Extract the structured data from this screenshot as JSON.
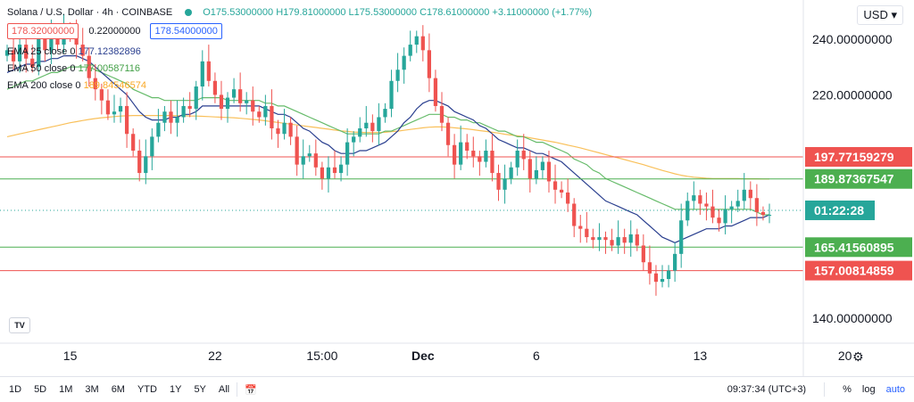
{
  "header": {
    "title": "Solana / U.S. Dollar · 4h · COINBASE",
    "ohlc": "O175.53000000 H179.81000000 L175.53000000 C178.61000000 +3.11000000 (+1.77%)",
    "bid": "178.32000000",
    "spread": "0.22000000",
    "ask": "178.54000000",
    "currency": "USD",
    "ema25": "EMA 25 close 0",
    "ema25_value": "177.12382896",
    "ema50": "EMA 50 close 0",
    "ema50_value": "177.00587116",
    "ema200": "EMA 200 close 0",
    "ema200_value": "189.84546574"
  },
  "chart_data": {
    "type": "candlestick",
    "ylim": [
      131,
      254
    ],
    "y_ticks": [
      {
        "v": 240,
        "label": "240.00000000"
      },
      {
        "v": 220,
        "label": "220.00000000"
      },
      {
        "v": 140,
        "label": "140.00000000"
      }
    ],
    "x_ticks": [
      "15",
      "22",
      "15:00",
      "Dec",
      "6",
      "13",
      "20"
    ],
    "x_tick_index": [
      10,
      33,
      50,
      66,
      84,
      110,
      133
    ],
    "horizontal_lines": [
      {
        "value": 197.77159279,
        "label": "197.77159279",
        "color": "#ef5350"
      },
      {
        "value": 189.87367547,
        "label": "189.87367547",
        "color": "#4caf50"
      },
      {
        "value": 165.41560895,
        "label": "165.41560895",
        "color": "#4caf50"
      },
      {
        "value": 157.00814859,
        "label": "157.00814859",
        "color": "#ef5350"
      }
    ],
    "current_price": {
      "value": 178.61,
      "countdown": "01:22:28",
      "color": "#26a69a"
    },
    "closes": [
      236,
      232,
      238,
      233,
      230,
      240,
      236,
      241,
      238,
      244,
      243,
      238,
      234,
      226,
      222,
      218,
      213,
      214,
      216,
      206,
      200,
      192,
      198,
      205,
      210,
      214,
      210,
      212,
      216,
      215,
      223,
      232,
      225,
      220,
      215,
      219,
      222,
      217,
      218,
      214,
      212,
      216,
      208,
      206,
      210,
      205,
      195,
      198,
      199,
      194,
      190,
      194,
      192,
      195,
      203,
      205,
      208,
      210,
      207,
      212,
      215,
      225,
      229,
      234,
      238,
      241,
      236,
      226,
      216,
      210,
      202,
      195,
      203,
      200,
      198,
      196,
      200,
      192,
      186,
      190,
      194,
      200,
      197,
      190,
      193,
      196,
      189,
      186,
      185,
      181,
      173,
      172,
      169,
      168,
      169,
      168,
      166,
      169,
      167,
      170,
      166,
      160,
      156,
      153,
      154,
      157,
      163,
      175,
      182,
      184,
      181,
      180,
      176,
      174,
      179,
      180,
      182,
      186,
      183,
      178,
      177,
      177
    ],
    "ema25": [
      228,
      229,
      230,
      231,
      231,
      232,
      232,
      233,
      233,
      234,
      234,
      234,
      233,
      232,
      230,
      228,
      226,
      224,
      222,
      220,
      217,
      214,
      212,
      211,
      211,
      211,
      212,
      212,
      213,
      213,
      214,
      216,
      216,
      216,
      216,
      216,
      216,
      216,
      216,
      216,
      216,
      215,
      214,
      213,
      213,
      212,
      210,
      208,
      207,
      205,
      203,
      202,
      200,
      199,
      199,
      199,
      200,
      200,
      201,
      202,
      203,
      205,
      207,
      210,
      212,
      215,
      217,
      218,
      218,
      217,
      216,
      214,
      213,
      212,
      211,
      209,
      208,
      206,
      204,
      203,
      202,
      201,
      201,
      200,
      199,
      199,
      198,
      197,
      196,
      194,
      192,
      190,
      188,
      186,
      184,
      182,
      181,
      180,
      179,
      178,
      177,
      175,
      173,
      171,
      169,
      168,
      167,
      168,
      169,
      170,
      171,
      172,
      172,
      172,
      173,
      173,
      174,
      175,
      176,
      176,
      176,
      177
    ],
    "ema50": [
      222,
      223,
      224,
      225,
      225,
      226,
      227,
      228,
      228,
      229,
      230,
      230,
      230,
      230,
      229,
      228,
      227,
      226,
      225,
      224,
      222,
      221,
      220,
      219,
      219,
      218,
      218,
      218,
      218,
      218,
      218,
      219,
      219,
      219,
      219,
      218,
      218,
      218,
      218,
      218,
      218,
      217,
      217,
      216,
      216,
      215,
      214,
      213,
      212,
      211,
      210,
      209,
      208,
      207,
      206,
      206,
      206,
      206,
      206,
      206,
      207,
      207,
      208,
      209,
      210,
      211,
      212,
      213,
      213,
      213,
      212,
      212,
      211,
      211,
      210,
      210,
      209,
      208,
      207,
      207,
      206,
      205,
      205,
      204,
      203,
      203,
      202,
      201,
      200,
      199,
      197,
      196,
      195,
      193,
      192,
      190,
      189,
      188,
      187,
      186,
      185,
      184,
      183,
      182,
      181,
      180,
      179,
      179,
      179,
      179,
      179,
      179,
      179,
      179,
      179,
      179,
      179,
      179,
      179,
      178,
      177,
      177
    ],
    "ema200": [
      205,
      205.5,
      206,
      206.5,
      207,
      207.5,
      208,
      208.5,
      209,
      209.5,
      210,
      210.4,
      210.8,
      211.2,
      211.5,
      211.8,
      212,
      212.2,
      212.4,
      212.5,
      212.6,
      212.6,
      212.6,
      212.6,
      212.6,
      212.6,
      212.6,
      212.5,
      212.5,
      212.4,
      212.4,
      212.3,
      212.2,
      212.1,
      212,
      211.9,
      211.8,
      211.6,
      211.4,
      211.2,
      211,
      210.7,
      210.4,
      210.1,
      209.8,
      209.5,
      209.2,
      208.9,
      208.6,
      208.3,
      208,
      207.7,
      207.4,
      207.1,
      206.9,
      206.7,
      206.6,
      206.5,
      206.5,
      206.5,
      206.6,
      206.8,
      207,
      207.3,
      207.6,
      207.9,
      208.2,
      208.4,
      208.5,
      208.5,
      208.4,
      208.2,
      208,
      207.8,
      207.5,
      207.2,
      206.9,
      206.6,
      206.3,
      205.9,
      205.6,
      205.3,
      205,
      204.6,
      204.2,
      203.8,
      203.4,
      203,
      202.5,
      202,
      201.5,
      201,
      200.4,
      199.8,
      199.2,
      198.6,
      198,
      197.4,
      196.8,
      196.2,
      195.6,
      195,
      194.3,
      193.6,
      192.9,
      192.3,
      191.7,
      191.2,
      190.8,
      190.5,
      190.3,
      190.1,
      190,
      190,
      190,
      190,
      190,
      189.9,
      189.9,
      189.9,
      189.85,
      189.84
    ]
  },
  "axis": {
    "settings_icon": "gear-icon"
  },
  "bottom_bar": {
    "timeframes": [
      "1D",
      "5D",
      "1M",
      "3M",
      "6M",
      "YTD",
      "1Y",
      "5Y",
      "All"
    ],
    "compare_icon": "calendar-range-icon",
    "time": "09:37:34 (UTC+3)",
    "percent": "%",
    "log": "log",
    "auto": "auto"
  },
  "logo": "TV"
}
